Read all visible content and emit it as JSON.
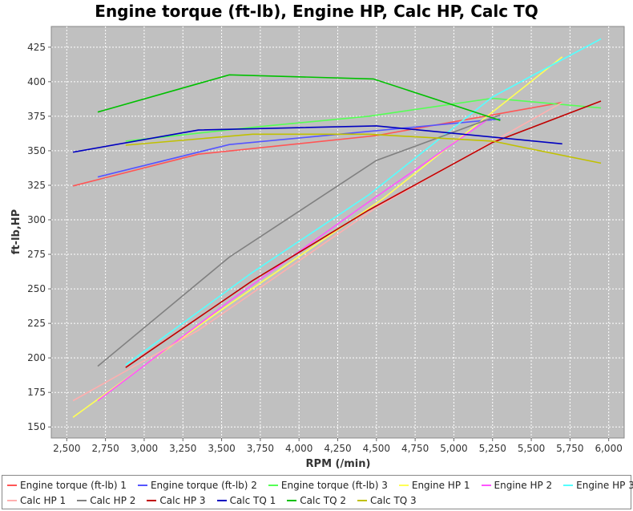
{
  "chart_data": {
    "type": "line",
    "title": "Engine torque (ft-lb), Engine HP, Calc HP, Calc TQ",
    "xlabel": "RPM (/min)",
    "ylabel": "ft-lb,HP",
    "xlim": [
      2400,
      6100
    ],
    "ylim": [
      142,
      440
    ],
    "x_ticks": [
      2500,
      2750,
      3000,
      3250,
      3500,
      3750,
      4000,
      4250,
      4500,
      4750,
      5000,
      5250,
      5500,
      5750,
      6000
    ],
    "x_tick_labels": [
      "2,500",
      "2,750",
      "3,000",
      "3,250",
      "3,500",
      "3,750",
      "4,000",
      "4,250",
      "4,500",
      "4,750",
      "5,000",
      "5,250",
      "5,500",
      "5,750",
      "6,000"
    ],
    "y_ticks": [
      150,
      175,
      200,
      225,
      250,
      275,
      300,
      325,
      350,
      375,
      400,
      425
    ],
    "y_tick_labels": [
      "150",
      "175",
      "200",
      "225",
      "250",
      "275",
      "300",
      "325",
      "350",
      "375",
      "400",
      "425"
    ],
    "grid": true,
    "legend_position": "bottom",
    "plot_background": "#c0c0c0",
    "series": [
      {
        "name": "Engine torque (ft-lb) 1",
        "color": "#ff5555",
        "x": [
          2540,
          3350,
          4500,
          5700
        ],
        "y": [
          324.5,
          347.5,
          361,
          385
        ]
      },
      {
        "name": "Engine torque (ft-lb) 2",
        "color": "#5555ff",
        "x": [
          2700,
          3550,
          4450,
          5300
        ],
        "y": [
          331,
          354.5,
          364,
          373
        ]
      },
      {
        "name": "Engine torque (ft-lb) 3",
        "color": "#55ff55",
        "x": [
          2880,
          3700,
          4450,
          5250,
          5950
        ],
        "y": [
          357,
          367,
          375,
          388,
          381
        ]
      },
      {
        "name": "Engine HP 1",
        "color": "#ffff55",
        "x": [
          2540,
          3450,
          4550,
          5700
        ],
        "y": [
          157,
          231,
          316,
          418
        ]
      },
      {
        "name": "Engine HP 2",
        "color": "#ff55ff",
        "x": [
          2700,
          3550,
          4400,
          5250
        ],
        "y": [
          169,
          241,
          309,
          375
        ]
      },
      {
        "name": "Engine HP 3",
        "color": "#55ffff",
        "x": [
          2880,
          3700,
          4450,
          5250,
          5950
        ],
        "y": [
          195,
          262,
          318,
          389,
          431
        ]
      },
      {
        "name": "Calc HP 1",
        "color": "#ffafaf",
        "x": [
          2540,
          3350,
          4500,
          5700
        ],
        "y": [
          169,
          220,
          309,
          385
        ]
      },
      {
        "name": "Calc HP 2",
        "color": "#808080",
        "x": [
          2700,
          3550,
          4500,
          5300
        ],
        "y": [
          194,
          273,
          343,
          376
        ]
      },
      {
        "name": "Calc HP 3",
        "color": "#c00000",
        "x": [
          2880,
          3700,
          4450,
          5250,
          5950
        ],
        "y": [
          193,
          256,
          307,
          356,
          386
        ]
      },
      {
        "name": "Calc TQ 1",
        "color": "#0000c0",
        "x": [
          2540,
          3350,
          4500,
          5700
        ],
        "y": [
          349,
          365,
          368,
          355
        ]
      },
      {
        "name": "Calc TQ 2",
        "color": "#00c000",
        "x": [
          2700,
          3550,
          4480,
          5300
        ],
        "y": [
          378,
          405,
          402,
          372
        ]
      },
      {
        "name": "Calc TQ 3",
        "color": "#c0c000",
        "x": [
          2880,
          3700,
          4450,
          5250,
          5950
        ],
        "y": [
          354,
          362,
          362,
          357,
          341
        ]
      }
    ]
  }
}
